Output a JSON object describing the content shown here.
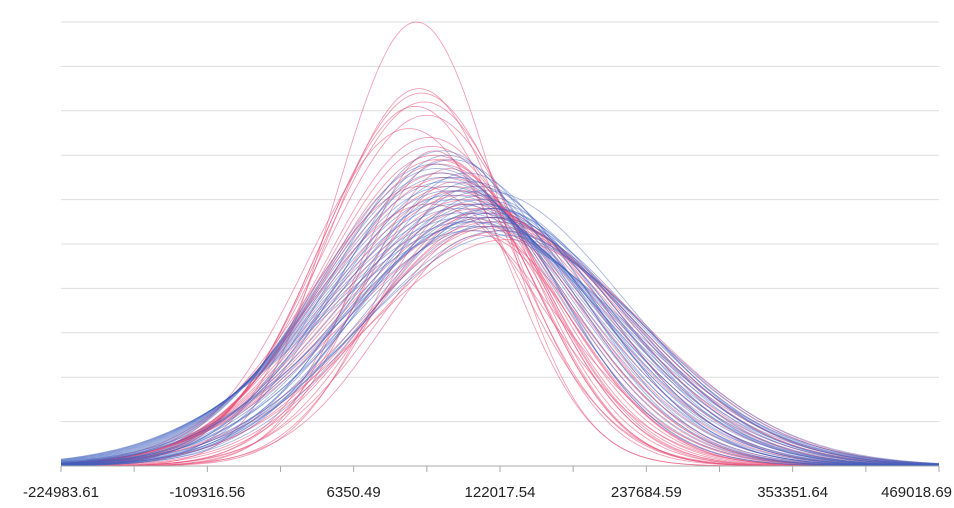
{
  "chart_data": {
    "type": "line",
    "title": "",
    "xlabel": "",
    "ylabel": "",
    "xlim": [
      -224983.61,
      469018.69
    ],
    "ylim": [
      0,
      10
    ],
    "x_ticks": [
      -224983.61,
      -109316.56,
      6350.49,
      122017.54,
      237684.59,
      353351.64,
      469018.69
    ],
    "x_tick_labels": [
      "-224983.61",
      "-109316.56",
      "6350.49",
      "122017.54",
      "237684.59",
      "353351.64",
      "469018.69"
    ],
    "y_gridlines": [
      1,
      2,
      3,
      4,
      5,
      6,
      7,
      8,
      9,
      10
    ],
    "grid": "horizontal",
    "legend": "none",
    "colors": {
      "pink": "#e8507a",
      "blue": "#3f5fbf",
      "grid": "#dddddd",
      "axis": "#aaaaaa"
    },
    "series_groups": [
      {
        "color": "pink",
        "curve_form": "normal density",
        "curves": [
          {
            "mean": 56000,
            "sd": 64000,
            "peak": 10.0
          },
          {
            "mean": 58000,
            "sd": 72000,
            "peak": 8.5
          },
          {
            "mean": 60000,
            "sd": 78000,
            "peak": 8.4
          },
          {
            "mean": 62000,
            "sd": 80000,
            "peak": 8.2
          },
          {
            "mean": 55000,
            "sd": 76000,
            "peak": 8.1
          },
          {
            "mean": 64000,
            "sd": 82000,
            "peak": 7.9
          },
          {
            "mean": 50000,
            "sd": 80000,
            "peak": 7.6
          },
          {
            "mean": 66000,
            "sd": 84000,
            "peak": 7.4
          },
          {
            "mean": 68000,
            "sd": 86000,
            "peak": 7.2
          },
          {
            "mean": 70000,
            "sd": 88000,
            "peak": 7.0
          },
          {
            "mean": 72000,
            "sd": 90000,
            "peak": 6.9
          },
          {
            "mean": 74000,
            "sd": 92000,
            "peak": 6.8
          },
          {
            "mean": 76000,
            "sd": 94000,
            "peak": 6.6
          },
          {
            "mean": 80000,
            "sd": 96000,
            "peak": 6.5
          },
          {
            "mean": 84000,
            "sd": 98000,
            "peak": 6.3
          },
          {
            "mean": 88000,
            "sd": 100000,
            "peak": 6.2
          },
          {
            "mean": 92000,
            "sd": 102000,
            "peak": 6.1
          },
          {
            "mean": 96000,
            "sd": 104000,
            "peak": 6.0
          },
          {
            "mean": 100000,
            "sd": 106000,
            "peak": 5.9
          },
          {
            "mean": 104000,
            "sd": 108000,
            "peak": 5.8
          },
          {
            "mean": 108000,
            "sd": 110000,
            "peak": 5.7
          },
          {
            "mean": 112000,
            "sd": 112000,
            "peak": 5.6
          },
          {
            "mean": 116000,
            "sd": 114000,
            "peak": 5.5
          },
          {
            "mean": 120000,
            "sd": 108000,
            "peak": 5.4
          },
          {
            "mean": 78000,
            "sd": 70000,
            "peak": 6.9
          },
          {
            "mean": 82000,
            "sd": 68000,
            "peak": 6.7
          },
          {
            "mean": 86000,
            "sd": 74000,
            "peak": 6.4
          },
          {
            "mean": 90000,
            "sd": 66000,
            "peak": 6.2
          },
          {
            "mean": 94000,
            "sd": 70000,
            "peak": 5.9
          },
          {
            "mean": 98000,
            "sd": 78000,
            "peak": 5.6
          },
          {
            "mean": 102000,
            "sd": 86000,
            "peak": 5.3
          },
          {
            "mean": 106000,
            "sd": 76000,
            "peak": 5.2
          },
          {
            "mean": 110000,
            "sd": 84000,
            "peak": 5.4
          },
          {
            "mean": 114000,
            "sd": 92000,
            "peak": 5.8
          },
          {
            "mean": 118000,
            "sd": 100000,
            "peak": 5.6
          },
          {
            "mean": 124000,
            "sd": 104000,
            "peak": 5.3
          },
          {
            "mean": 128000,
            "sd": 112000,
            "peak": 5.1
          },
          {
            "mean": 70000,
            "sd": 62000,
            "peak": 7.1
          },
          {
            "mean": 60000,
            "sd": 90000,
            "peak": 6.3
          },
          {
            "mean": 66000,
            "sd": 96000,
            "peak": 5.9
          }
        ]
      },
      {
        "color": "blue",
        "curve_form": "normal density",
        "curves": [
          {
            "mean": 70000,
            "sd": 92000,
            "peak": 6.8
          },
          {
            "mean": 72000,
            "sd": 94000,
            "peak": 6.7
          },
          {
            "mean": 74000,
            "sd": 96000,
            "peak": 6.6
          },
          {
            "mean": 76000,
            "sd": 98000,
            "peak": 6.5
          },
          {
            "mean": 78000,
            "sd": 100000,
            "peak": 6.4
          },
          {
            "mean": 80000,
            "sd": 102000,
            "peak": 6.3
          },
          {
            "mean": 82000,
            "sd": 104000,
            "peak": 6.2
          },
          {
            "mean": 84000,
            "sd": 106000,
            "peak": 6.1
          },
          {
            "mean": 86000,
            "sd": 108000,
            "peak": 6.0
          },
          {
            "mean": 88000,
            "sd": 110000,
            "peak": 5.9
          },
          {
            "mean": 90000,
            "sd": 112000,
            "peak": 5.8
          },
          {
            "mean": 92000,
            "sd": 114000,
            "peak": 5.7
          },
          {
            "mean": 94000,
            "sd": 116000,
            "peak": 5.6
          },
          {
            "mean": 96000,
            "sd": 118000,
            "peak": 5.5
          },
          {
            "mean": 98000,
            "sd": 120000,
            "peak": 5.4
          },
          {
            "mean": 100000,
            "sd": 122000,
            "peak": 5.3
          },
          {
            "mean": 102000,
            "sd": 104000,
            "peak": 5.5
          },
          {
            "mean": 104000,
            "sd": 98000,
            "peak": 5.7
          },
          {
            "mean": 106000,
            "sd": 102000,
            "peak": 5.9
          },
          {
            "mean": 108000,
            "sd": 106000,
            "peak": 6.0
          },
          {
            "mean": 110000,
            "sd": 110000,
            "peak": 6.2
          },
          {
            "mean": 112000,
            "sd": 114000,
            "peak": 5.6
          },
          {
            "mean": 114000,
            "sd": 118000,
            "peak": 5.4
          },
          {
            "mean": 116000,
            "sd": 100000,
            "peak": 5.7
          },
          {
            "mean": 118000,
            "sd": 96000,
            "peak": 5.8
          },
          {
            "mean": 120000,
            "sd": 104000,
            "peak": 5.5
          },
          {
            "mean": 122000,
            "sd": 108000,
            "peak": 5.3
          },
          {
            "mean": 124000,
            "sd": 112000,
            "peak": 5.2
          },
          {
            "mean": 96000,
            "sd": 88000,
            "peak": 6.6
          },
          {
            "mean": 100000,
            "sd": 92000,
            "peak": 6.4
          },
          {
            "mean": 104000,
            "sd": 90000,
            "peak": 6.3
          },
          {
            "mean": 108000,
            "sd": 94000,
            "peak": 6.1
          },
          {
            "mean": 84000,
            "sd": 90000,
            "peak": 6.9
          },
          {
            "mean": 88000,
            "sd": 96000,
            "peak": 6.5
          },
          {
            "mean": 92000,
            "sd": 100000,
            "peak": 6.2
          },
          {
            "mean": 110000,
            "sd": 98000,
            "peak": 5.9
          },
          {
            "mean": 114000,
            "sd": 106000,
            "peak": 5.8
          },
          {
            "mean": 118000,
            "sd": 110000,
            "peak": 5.6
          },
          {
            "mean": 80000,
            "sd": 84000,
            "peak": 7.0
          },
          {
            "mean": 76000,
            "sd": 86000,
            "peak": 7.1
          }
        ]
      }
    ]
  }
}
